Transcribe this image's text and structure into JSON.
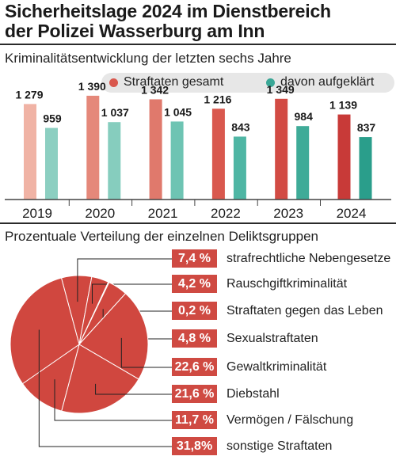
{
  "headline": {
    "line1": "Sicherheitslage 2024 im Dienstbereich",
    "line2": "der Polizei Wasserburg am Inn"
  },
  "colors": {
    "total_bars": [
      "#f0b3a5",
      "#e5887a",
      "#e0796c",
      "#d9584e",
      "#d24b44",
      "#c83a38"
    ],
    "solved_bars": [
      "#8ccfc1",
      "#86cdbe",
      "#6ec4b3",
      "#4fb6a4",
      "#3fab98",
      "#2a9e8b"
    ],
    "legend_total": "#d9584e",
    "legend_solved": "#3aa796",
    "pie": "#d0473f",
    "label_box": "#cf4a42"
  },
  "chart_data": [
    {
      "type": "bar",
      "title": "Kriminalitätsentwicklung der letzten sechs Jahre",
      "categories": [
        "2019",
        "2020",
        "2021",
        "2022",
        "2023",
        "2024"
      ],
      "series": [
        {
          "name": "Straftaten gesamt",
          "values": [
            1279,
            1390,
            1342,
            1216,
            1349,
            1139
          ],
          "labels": [
            "1 279",
            "1 390",
            "1 342",
            "1 216",
            "1 349",
            "1 139"
          ]
        },
        {
          "name": "davon aufgeklärt",
          "values": [
            959,
            1037,
            1045,
            843,
            984,
            837
          ],
          "labels": [
            "959",
            "1 037",
            "1 045",
            "843",
            "984",
            "837"
          ]
        }
      ],
      "ylim": [
        0,
        1500
      ],
      "legend": "top-right",
      "grid": false
    },
    {
      "type": "pie",
      "title": "Prozentuale Verteilung der einzelnen Deliktsgruppen",
      "slices": [
        {
          "name": "strafrechtliche Nebengesetze",
          "value": 7.4,
          "label": "7,4 %"
        },
        {
          "name": "Rauschgiftkriminalität",
          "value": 4.2,
          "label": "4,2 %"
        },
        {
          "name": "Straftaten gegen das Leben",
          "value": 0.2,
          "label": "0,2 %"
        },
        {
          "name": "Sexualstraftaten",
          "value": 4.8,
          "label": "4,8 %"
        },
        {
          "name": "Gewaltkriminalität",
          "value": 22.6,
          "label": "22,6 %"
        },
        {
          "name": "Diebstahl",
          "value": 21.6,
          "label": "21,6 %"
        },
        {
          "name": "Vermögen / Fälschung",
          "value": 11.7,
          "label": "11,7 %"
        },
        {
          "name": "sonstige Straftaten",
          "value": 31.8,
          "label": "31,8%"
        }
      ]
    }
  ]
}
